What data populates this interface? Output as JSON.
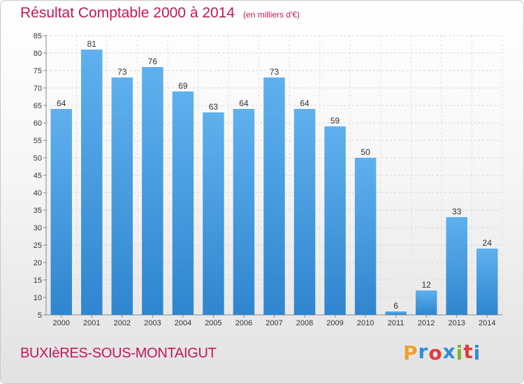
{
  "header": {
    "title": "Résultat Comptable 2000 à 2014",
    "unit": "(en milliers d'€)"
  },
  "footer": {
    "commune": "BUXIèRES-SOUS-MONTAIGUT",
    "logo": "Proxiti",
    "logo_colors": [
      "#f0a030",
      "#2d8fd6",
      "#e23b3b",
      "#2d8fd6",
      "#7ab82e",
      "#e23b3b",
      "#2d8fd6"
    ]
  },
  "chart_data": {
    "type": "bar",
    "title": "Résultat Comptable 2000 à 2014",
    "subtitle": "(en milliers d'€)",
    "categories": [
      "2000",
      "2001",
      "2002",
      "2003",
      "2004",
      "2005",
      "2006",
      "2007",
      "2008",
      "2009",
      "2010",
      "2011",
      "2012",
      "2013",
      "2014"
    ],
    "values": [
      64,
      81,
      73,
      76,
      69,
      63,
      64,
      73,
      64,
      59,
      50,
      6,
      12,
      33,
      24
    ],
    "ylim": [
      5,
      85
    ],
    "yticks": [
      5,
      10,
      15,
      20,
      25,
      30,
      35,
      40,
      45,
      50,
      55,
      60,
      65,
      70,
      75,
      80,
      85
    ],
    "grid": true,
    "bar_color": "#2f86cf",
    "bar_color_light": "#5fb0ee",
    "xlabel": "",
    "ylabel": ""
  }
}
